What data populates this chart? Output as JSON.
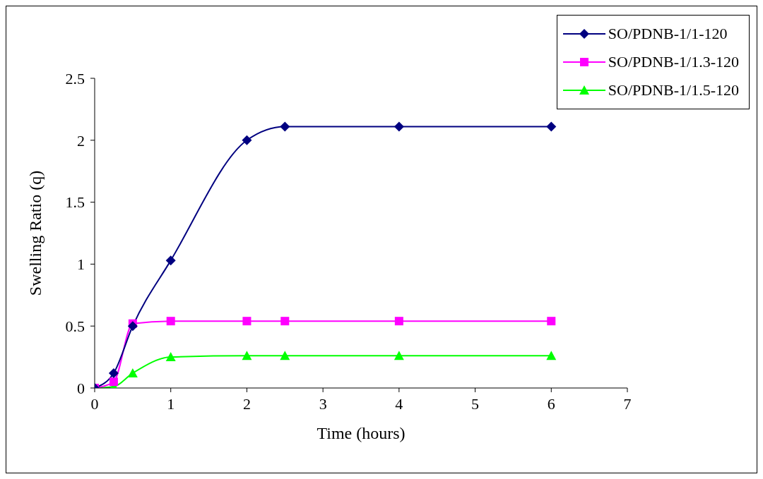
{
  "chart_data": {
    "type": "line",
    "xlabel": "Time (hours)",
    "ylabel": "Swelling Ratio (q)",
    "x": [
      0,
      0.25,
      0.5,
      1,
      2,
      2.5,
      4,
      6
    ],
    "series": [
      {
        "name": "SO/PDNB-1/1-120",
        "color": "#000080",
        "marker": "diamond",
        "values": [
          0,
          0.12,
          0.5,
          1.03,
          2.0,
          2.11,
          2.11,
          2.11
        ]
      },
      {
        "name": "SO/PDNB-1/1.3-120",
        "color": "#ff00ff",
        "marker": "square",
        "values": [
          0,
          0.05,
          0.52,
          0.54,
          0.54,
          0.54,
          0.54,
          0.54
        ]
      },
      {
        "name": "SO/PDNB-1/1.5-120",
        "color": "#00ff00",
        "marker": "triangle",
        "values": [
          0,
          0.01,
          0.12,
          0.25,
          0.26,
          0.26,
          0.26,
          0.26
        ]
      }
    ],
    "xlim": [
      0,
      7
    ],
    "xticks": [
      0,
      1,
      2,
      3,
      4,
      5,
      6,
      7
    ],
    "ylim": [
      0,
      2.5
    ],
    "yticks": [
      0,
      0.5,
      1,
      1.5,
      2,
      2.5
    ],
    "grid": false,
    "legend": "top right",
    "line_style": "solid"
  }
}
